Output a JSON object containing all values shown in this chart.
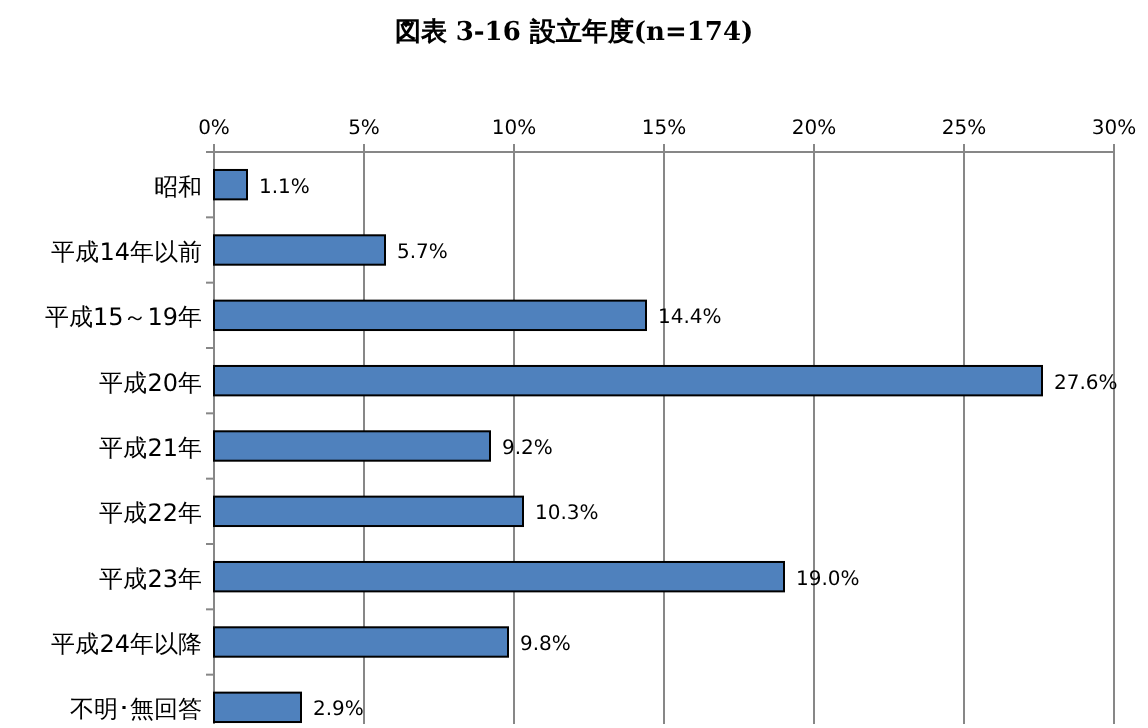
{
  "chart_data": {
    "type": "bar",
    "orientation": "horizontal",
    "title": "図表 3-16 設立年度(n=174)",
    "categories": [
      "昭和",
      "平成14年以前",
      "平成15～19年",
      "平成20年",
      "平成21年",
      "平成22年",
      "平成23年",
      "平成24年以降",
      "不明･無回答"
    ],
    "values": [
      1.1,
      5.7,
      14.4,
      27.6,
      9.2,
      10.3,
      19.0,
      9.8,
      2.9
    ],
    "value_labels": [
      "1.1%",
      "5.7%",
      "14.4%",
      "27.6%",
      "9.2%",
      "10.3%",
      "19.0%",
      "9.8%",
      "2.9%"
    ],
    "color": "#4f81bd",
    "xlim": [
      0,
      30
    ],
    "xticks": [
      {
        "value": 0,
        "label": "0%"
      },
      {
        "value": 5,
        "label": "5%"
      },
      {
        "value": 10,
        "label": "10%"
      },
      {
        "value": 15,
        "label": "15%"
      },
      {
        "value": 20,
        "label": "20%"
      },
      {
        "value": 25,
        "label": "25%"
      },
      {
        "value": 30,
        "label": "30%"
      }
    ],
    "grid": "x"
  }
}
